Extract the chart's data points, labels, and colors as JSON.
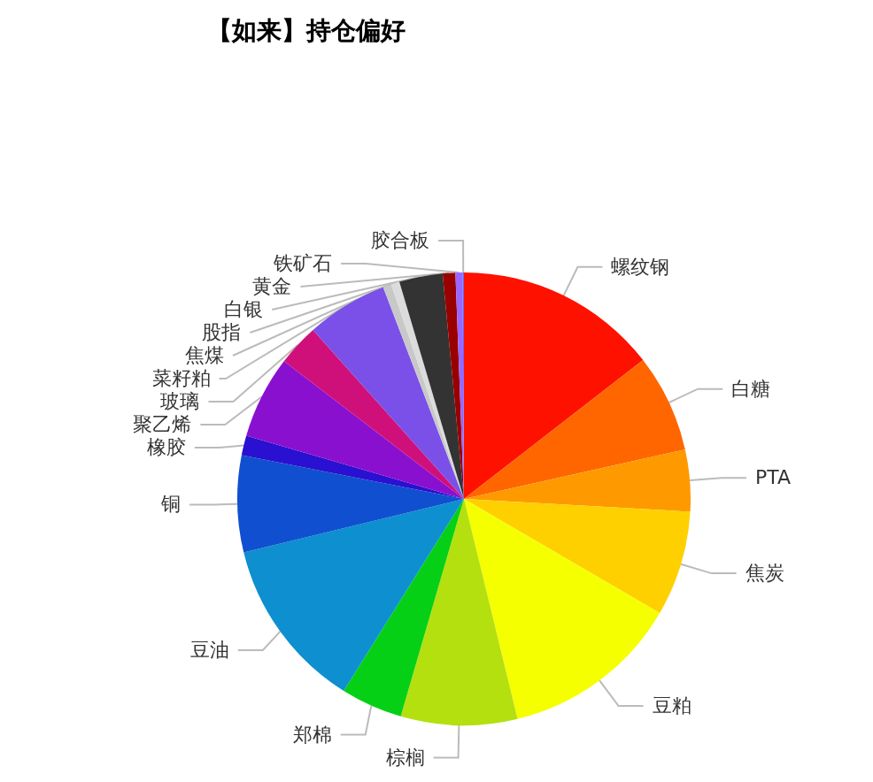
{
  "chart_data": {
    "type": "pie",
    "title": "【如来】持仓偏好",
    "categories": [
      "螺纹钢",
      "白糖",
      "PTA",
      "焦炭",
      "豆粕",
      "棕榈",
      "郑棉",
      "豆油",
      "铜",
      "橡胶",
      "聚乙烯",
      "玻璃",
      "菜籽粕",
      "焦煤",
      "股指",
      "白银",
      "黄金",
      "铁矿石",
      "胶合板"
    ],
    "values": [
      14.5,
      7.0,
      4.4,
      7.5,
      12.8,
      8.3,
      4.4,
      12.3,
      6.9,
      1.4,
      5.9,
      3.0,
      5.8,
      0.6,
      0.6,
      3.1,
      0.9,
      0.5,
      0.1
    ],
    "colors": [
      "#ff1100",
      "#ff6600",
      "#ff9900",
      "#ffd000",
      "#f5ff00",
      "#b4e010",
      "#05d015",
      "#0e8fd0",
      "#1050d0",
      "#2a10d0",
      "#8a10d0",
      "#d0107a",
      "#7a50e8",
      "#c8c8c8",
      "#dcdcdc",
      "#333333",
      "#990000",
      "#9966ff",
      "#6666ff"
    ]
  }
}
